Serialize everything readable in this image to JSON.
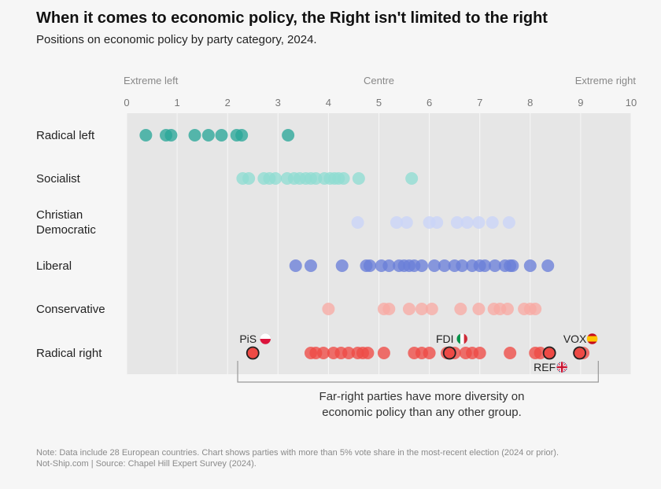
{
  "header": {
    "title": "When it comes to economic policy, the Right isn't limited to the right",
    "subtitle": "Positions on economic policy by party category, 2024."
  },
  "footer": {
    "note": "Note: Data include 28 European countries. Chart shows parties with more than 5% vote share in the most-recent election (2024 or prior).",
    "source": "Not-Ship.com | Source: Chapel Hill Expert Survey (2024)."
  },
  "chart_data": {
    "type": "scatter",
    "title": "When it comes to economic policy, the Right isn't limited to the right",
    "subtitle": "Positions on economic policy by party category, 2024.",
    "xlim": [
      0,
      10
    ],
    "xticks": [
      "0",
      "1",
      "2",
      "3",
      "4",
      "5",
      "6",
      "7",
      "8",
      "9",
      "10"
    ],
    "scale_labels": [
      {
        "x": 0,
        "text": "Extreme left"
      },
      {
        "x": 5,
        "text": "Centre"
      },
      {
        "x": 10,
        "text": "Extreme right"
      }
    ],
    "grid": true,
    "categories": [
      "Radical left",
      "Socialist",
      "Christian Democratic",
      "Liberal",
      "Conservative",
      "Radical right"
    ],
    "series": [
      {
        "name": "Radical left",
        "color": "#2aa698",
        "x": [
          0.38,
          0.78,
          0.88,
          1.35,
          1.62,
          1.88,
          2.18,
          2.28,
          3.2
        ]
      },
      {
        "name": "Socialist",
        "color": "#8fdcd2",
        "x": [
          2.3,
          2.42,
          2.72,
          2.83,
          2.95,
          3.18,
          3.32,
          3.43,
          3.55,
          3.65,
          3.75,
          3.92,
          4.03,
          4.12,
          4.2,
          4.3,
          4.6,
          5.65
        ]
      },
      {
        "name": "Christian Democratic",
        "color": "#c9d4f7",
        "x": [
          4.58,
          5.35,
          5.55,
          6.0,
          6.15,
          6.55,
          6.75,
          6.98,
          7.25,
          7.58
        ]
      },
      {
        "name": "Liberal",
        "color": "#6a7fd9",
        "x": [
          3.35,
          3.65,
          4.27,
          4.75,
          4.82,
          5.05,
          5.2,
          5.4,
          5.5,
          5.6,
          5.7,
          5.85,
          6.1,
          6.3,
          6.5,
          6.65,
          6.85,
          7.0,
          7.1,
          7.3,
          7.5,
          7.6,
          7.65,
          8.0,
          8.35
        ]
      },
      {
        "name": "Conservative",
        "color": "#f7aaa4",
        "x": [
          4.0,
          5.1,
          5.2,
          5.6,
          5.85,
          6.05,
          6.62,
          6.98,
          7.28,
          7.4,
          7.55,
          7.88,
          8.0,
          8.1
        ]
      },
      {
        "name": "Radical right",
        "color": "#ee4a45",
        "x": [
          3.65,
          3.75,
          3.9,
          4.1,
          4.25,
          4.4,
          4.58,
          4.68,
          4.78,
          5.1,
          5.7,
          5.85,
          6.0,
          6.35,
          6.5,
          6.72,
          6.85,
          7.0,
          7.6,
          8.1,
          8.2,
          9.05
        ]
      }
    ],
    "highlighted": [
      {
        "label": "PiS",
        "x": 2.5,
        "category": "Radical right",
        "flag": "poland-flag-icon",
        "label_side": "above"
      },
      {
        "label": "FDI",
        "x": 6.4,
        "category": "Radical right",
        "flag": "italy-flag-icon",
        "label_side": "above"
      },
      {
        "label": "VOX",
        "x": 8.98,
        "category": "Radical right",
        "flag": "spain-flag-icon",
        "label_side": "above"
      },
      {
        "label": "REF",
        "x": 8.38,
        "category": "Radical right",
        "flag": "uk-flag-icon",
        "label_side": "below"
      }
    ],
    "annotation": {
      "text_lines": [
        "Far-right parties have more diversity on",
        "economic policy than any other group."
      ],
      "x_range": [
        2.2,
        9.35
      ]
    }
  }
}
